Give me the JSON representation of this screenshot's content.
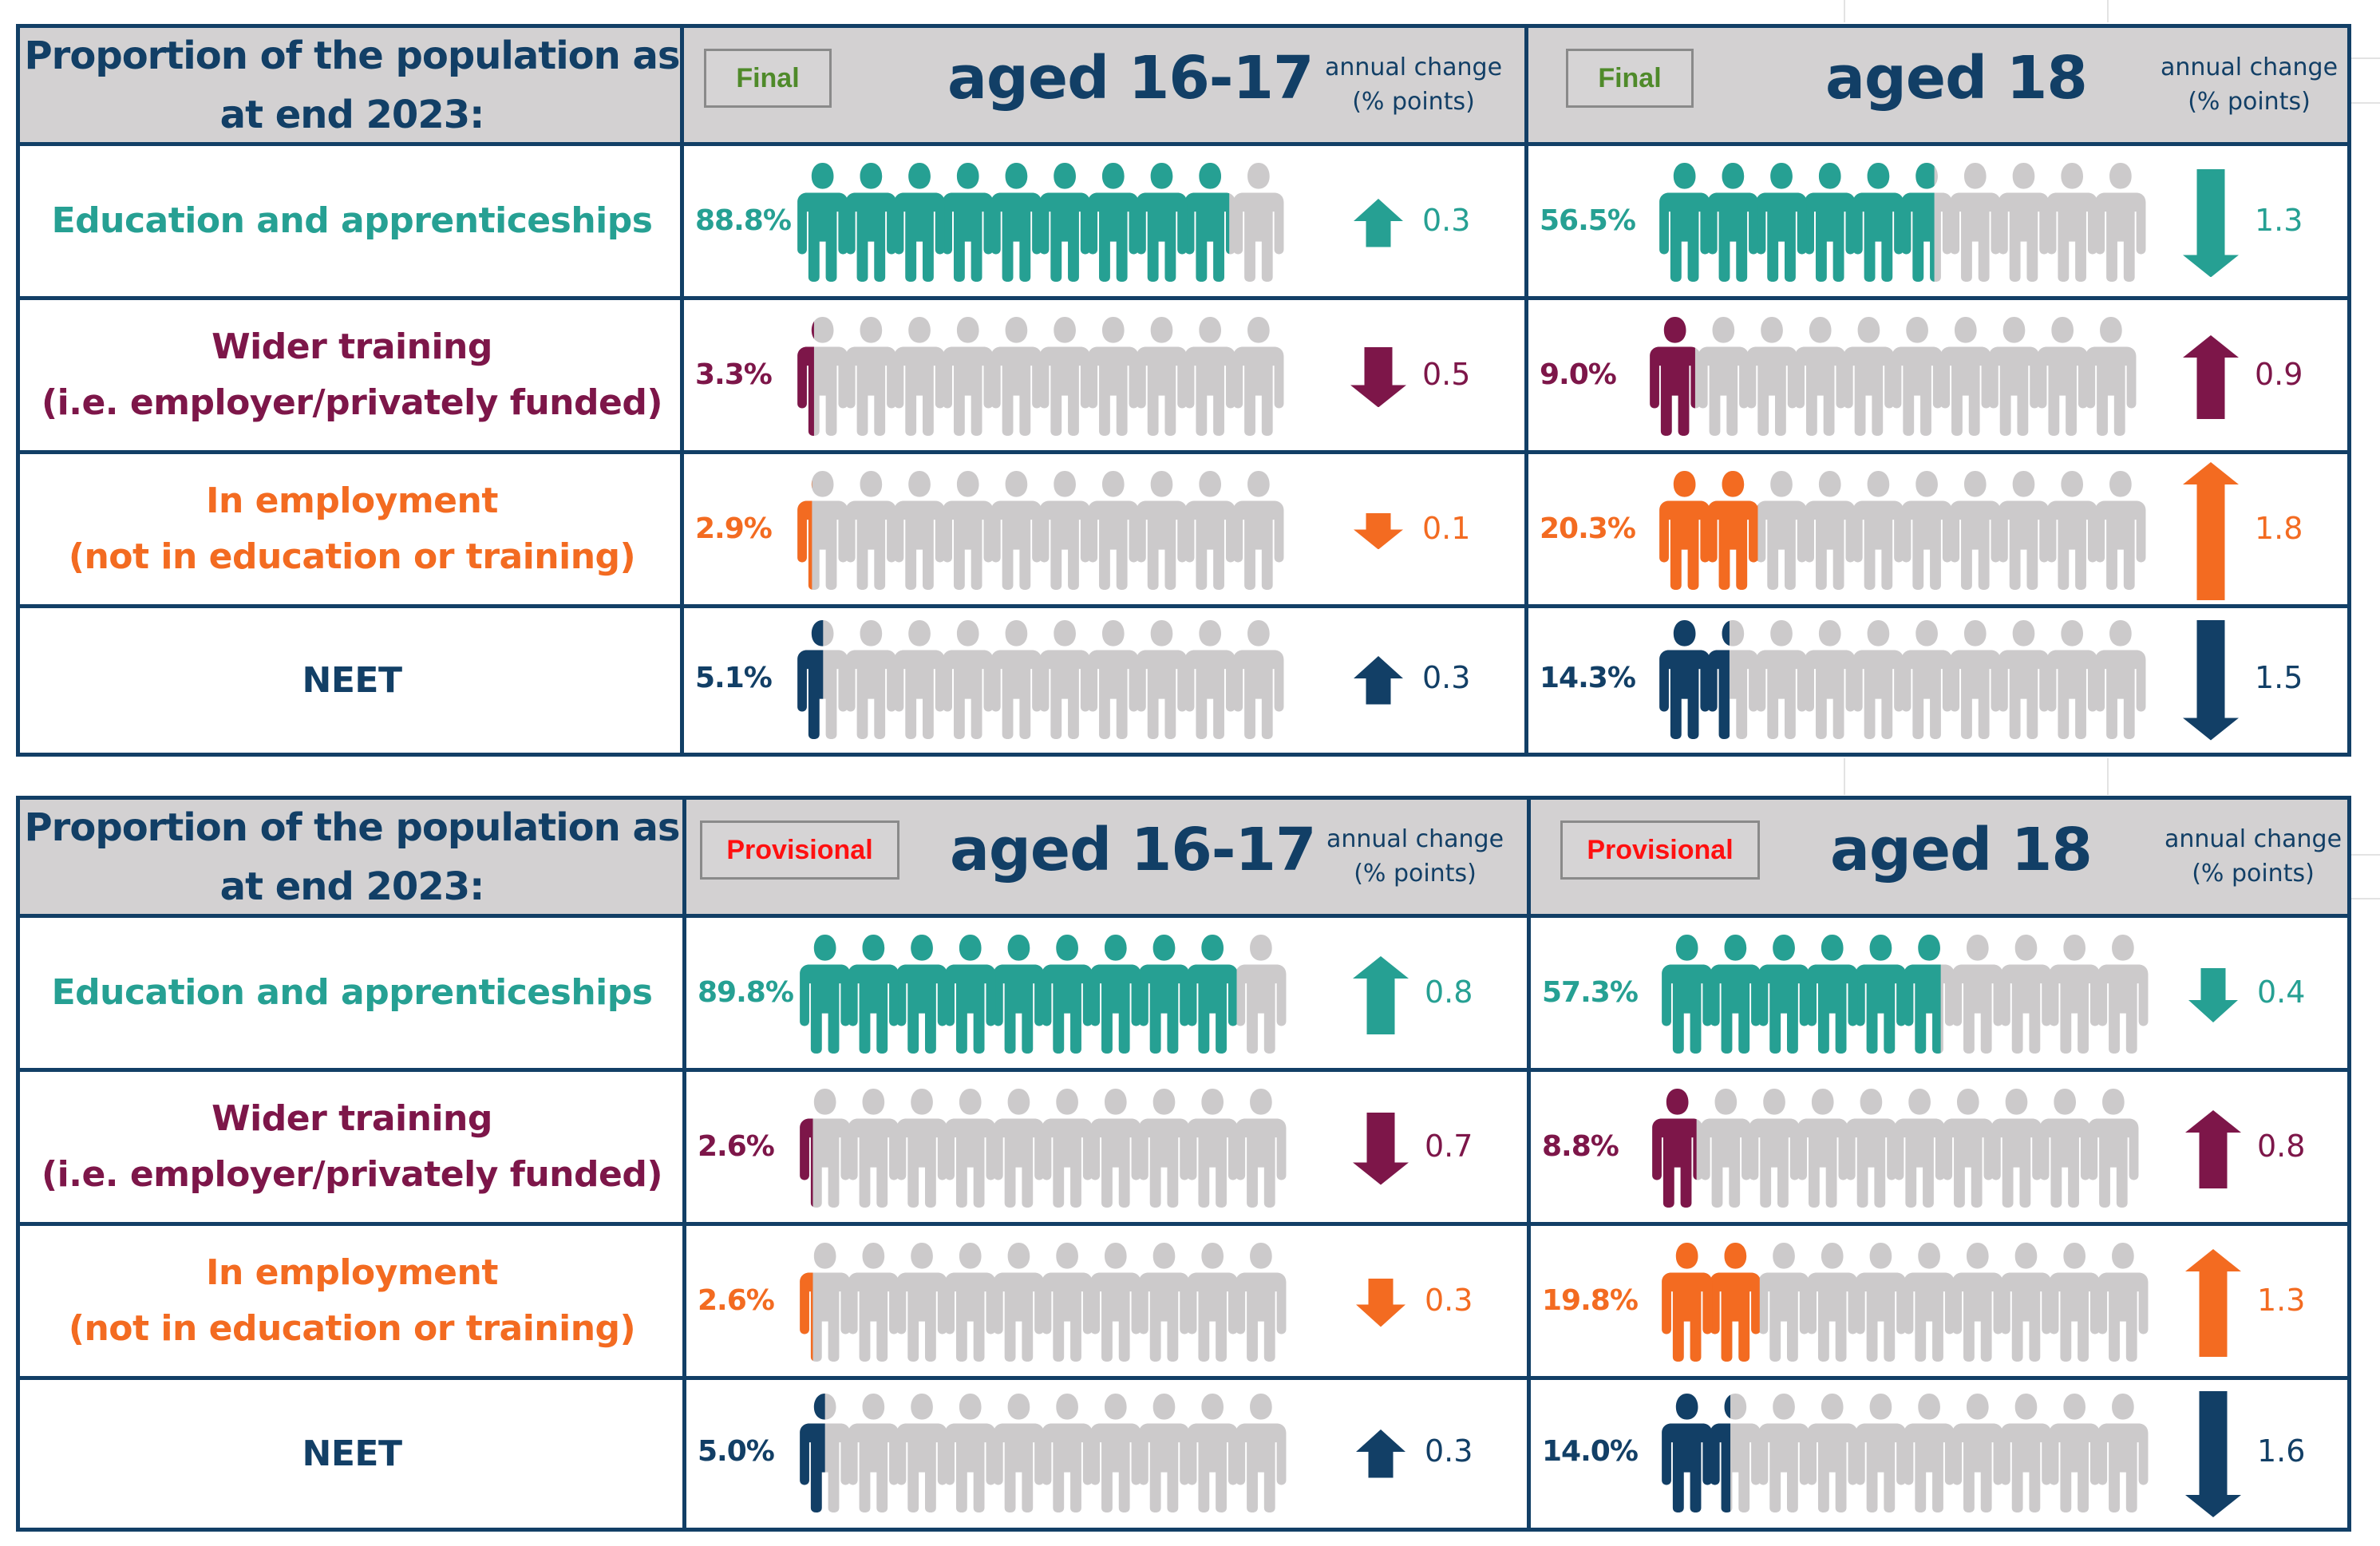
{
  "colors": {
    "education": "#26a093",
    "wider_training": "#7d1649",
    "employment": "#f36b21",
    "neet": "#123f66",
    "inactive_person": "#cccacb",
    "header_bg": "#d3d1d2",
    "border": "#123f66",
    "final_badge": "#4f8a2a",
    "provisional_badge": "#ff1010"
  },
  "icons": {
    "person": "person-icon",
    "up": "arrow-up-icon",
    "down": "arrow-down-icon"
  },
  "chart_data": [
    {
      "type": "table",
      "title": "Proportion of the population as at end 2023:",
      "status": "Final",
      "change_header": "annual change (% points)",
      "categories": [
        "Education and apprenticeships",
        "Wider training (i.e. employer/privately funded)",
        "In employment (not in education or training)",
        "NEET"
      ],
      "groups": [
        {
          "name": "aged 16-17",
          "proportions": [
            88.8,
            3.3,
            2.9,
            5.1
          ],
          "changes": [
            {
              "direction": "up",
              "value": 0.3
            },
            {
              "direction": "down",
              "value": 0.5
            },
            {
              "direction": "down",
              "value": 0.1
            },
            {
              "direction": "up",
              "value": 0.3
            }
          ]
        },
        {
          "name": "aged 18",
          "proportions": [
            56.5,
            9.0,
            20.3,
            14.3
          ],
          "changes": [
            {
              "direction": "down",
              "value": 1.3
            },
            {
              "direction": "up",
              "value": 0.9
            },
            {
              "direction": "up",
              "value": 1.8
            },
            {
              "direction": "down",
              "value": 1.5
            }
          ]
        }
      ]
    },
    {
      "type": "table",
      "title": "Proportion of the population as at end 2023:",
      "status": "Provisional",
      "change_header": "annual change (% points)",
      "categories": [
        "Education and apprenticeships",
        "Wider training (i.e. employer/privately funded)",
        "In employment (not in education or training)",
        "NEET"
      ],
      "groups": [
        {
          "name": "aged 16-17",
          "proportions": [
            89.8,
            2.6,
            2.6,
            5.0
          ],
          "changes": [
            {
              "direction": "up",
              "value": 0.8
            },
            {
              "direction": "down",
              "value": 0.7
            },
            {
              "direction": "down",
              "value": 0.3
            },
            {
              "direction": "up",
              "value": 0.3
            }
          ]
        },
        {
          "name": "aged 18",
          "proportions": [
            57.3,
            8.8,
            19.8,
            14.0
          ],
          "changes": [
            {
              "direction": "down",
              "value": 0.4
            },
            {
              "direction": "up",
              "value": 0.8
            },
            {
              "direction": "up",
              "value": 1.3
            },
            {
              "direction": "down",
              "value": 1.6
            }
          ]
        }
      ]
    }
  ],
  "tables": [
    {
      "title_line1": "Proportion of the population as",
      "title_line2": "at end 2023:",
      "badge": "Final",
      "groups": [
        {
          "title": "aged 16-17",
          "change_line1": "annual change",
          "change_line2": "(% points)",
          "rows": [
            {
              "pct": "88.8%",
              "change": "0.3"
            },
            {
              "pct": "3.3%",
              "change": "0.5"
            },
            {
              "pct": "2.9%",
              "change": "0.1"
            },
            {
              "pct": "5.1%",
              "change": "0.3"
            }
          ]
        },
        {
          "title": "aged 18",
          "change_line1": "annual change",
          "change_line2": "(% points)",
          "rows": [
            {
              "pct": "56.5%",
              "change": "1.3"
            },
            {
              "pct": "9.0%",
              "change": "0.9"
            },
            {
              "pct": "20.3%",
              "change": "1.8"
            },
            {
              "pct": "14.3%",
              "change": "1.5"
            }
          ]
        }
      ],
      "categories": [
        {
          "line1": "Education and apprenticeships",
          "line2": ""
        },
        {
          "line1": "Wider training",
          "line2": "(i.e. employer/privately funded)"
        },
        {
          "line1": "In employment",
          "line2": "(not in education or training)"
        },
        {
          "line1": "NEET",
          "line2": ""
        }
      ]
    },
    {
      "title_line1": "Proportion of the population as",
      "title_line2": "at end 2023:",
      "badge": "Provisional",
      "groups": [
        {
          "title": "aged 16-17",
          "change_line1": "annual change",
          "change_line2": "(% points)",
          "rows": [
            {
              "pct": "89.8%",
              "change": "0.8"
            },
            {
              "pct": "2.6%",
              "change": "0.7"
            },
            {
              "pct": "2.6%",
              "change": "0.3"
            },
            {
              "pct": "5.0%",
              "change": "0.3"
            }
          ]
        },
        {
          "title": "aged 18",
          "change_line1": "annual change",
          "change_line2": "(% points)",
          "rows": [
            {
              "pct": "57.3%",
              "change": "0.4"
            },
            {
              "pct": "8.8%",
              "change": "0.8"
            },
            {
              "pct": "19.8%",
              "change": "1.3"
            },
            {
              "pct": "14.0%",
              "change": "1.6"
            }
          ]
        }
      ],
      "categories": [
        {
          "line1": "Education and apprenticeships",
          "line2": ""
        },
        {
          "line1": "Wider training",
          "line2": "(i.e. employer/privately funded)"
        },
        {
          "line1": "In employment",
          "line2": "(not in education or training)"
        },
        {
          "line1": "NEET",
          "line2": ""
        }
      ]
    }
  ]
}
